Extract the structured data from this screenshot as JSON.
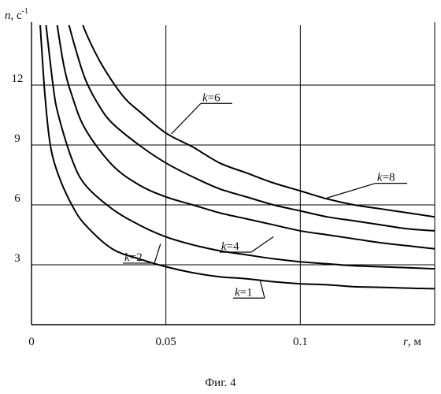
{
  "chart_data": {
    "type": "line",
    "caption": "Фиг. 4",
    "xaxis": {
      "var": "r",
      "unit": "м",
      "range": [
        0,
        0.15
      ],
      "ticks": [
        0,
        0.05,
        0.1
      ],
      "tick_labels": [
        "0",
        "0.05",
        "0.1"
      ]
    },
    "yaxis": {
      "var": "n",
      "unit": "с",
      "unit_exp": "-1",
      "range": [
        0,
        15
      ],
      "ticks": [
        3,
        6,
        9,
        12
      ],
      "tick_labels": [
        "3",
        "6",
        "9",
        "12"
      ]
    },
    "grid": true,
    "series": [
      {
        "name": "k=1",
        "var": "k",
        "eq": "=",
        "value": "1",
        "x": [
          0.003,
          0.005,
          0.007,
          0.01,
          0.015,
          0.02,
          0.03,
          0.04,
          0.05,
          0.06,
          0.07,
          0.08,
          0.09,
          0.1,
          0.11,
          0.12,
          0.13,
          0.14,
          0.15
        ],
        "y": [
          15.5,
          11.5,
          9.0,
          7.5,
          6.0,
          5.0,
          3.8,
          3.3,
          2.9,
          2.6,
          2.4,
          2.3,
          2.15,
          2.05,
          2.0,
          1.9,
          1.87,
          1.83,
          1.8
        ]
      },
      {
        "name": "k=2",
        "var": "k",
        "eq": "=",
        "value": "2",
        "x": [
          0.005,
          0.008,
          0.01,
          0.015,
          0.02,
          0.03,
          0.04,
          0.05,
          0.06,
          0.07,
          0.08,
          0.09,
          0.1,
          0.11,
          0.12,
          0.13,
          0.14,
          0.15
        ],
        "y": [
          15.5,
          12.0,
          10.5,
          8.3,
          7.0,
          5.8,
          5.0,
          4.4,
          4.0,
          3.7,
          3.5,
          3.3,
          3.15,
          3.05,
          2.95,
          2.9,
          2.85,
          2.8
        ]
      },
      {
        "name": "k=4",
        "var": "k",
        "eq": "=",
        "value": "4",
        "x": [
          0.009,
          0.012,
          0.015,
          0.02,
          0.03,
          0.04,
          0.05,
          0.06,
          0.07,
          0.08,
          0.09,
          0.1,
          0.11,
          0.12,
          0.13,
          0.14,
          0.15
        ],
        "y": [
          15.5,
          13.0,
          11.5,
          9.8,
          8.0,
          7.0,
          6.4,
          6.0,
          5.6,
          5.3,
          5.0,
          4.7,
          4.5,
          4.3,
          4.1,
          3.95,
          3.8
        ]
      },
      {
        "name": "k=6",
        "var": "k",
        "eq": "=",
        "value": "6",
        "x": [
          0.013,
          0.016,
          0.02,
          0.025,
          0.03,
          0.04,
          0.05,
          0.06,
          0.07,
          0.08,
          0.09,
          0.1,
          0.11,
          0.12,
          0.13,
          0.14,
          0.15
        ],
        "y": [
          15.5,
          14.0,
          12.3,
          11.0,
          10.1,
          9.0,
          8.1,
          7.4,
          6.8,
          6.4,
          6.0,
          5.7,
          5.4,
          5.2,
          5.0,
          4.8,
          4.7
        ]
      },
      {
        "name": "k=8",
        "var": "k",
        "eq": "=",
        "value": "8",
        "x": [
          0.018,
          0.02,
          0.025,
          0.03,
          0.035,
          0.04,
          0.05,
          0.06,
          0.07,
          0.08,
          0.09,
          0.1,
          0.11,
          0.12,
          0.13,
          0.14,
          0.15
        ],
        "y": [
          15.5,
          14.7,
          13.3,
          12.2,
          11.3,
          10.7,
          9.6,
          8.9,
          8.1,
          7.6,
          7.1,
          6.7,
          6.3,
          6.0,
          5.8,
          5.6,
          5.4
        ]
      }
    ],
    "annotations": [
      {
        "series": "k=6",
        "point": [
          0.052,
          9.55
        ],
        "label_at": [
          0.063,
          11.2
        ]
      },
      {
        "series": "k=8",
        "point": [
          0.11,
          6.35
        ],
        "label_at": [
          0.128,
          7.2
        ]
      },
      {
        "series": "k=4",
        "point": [
          0.09,
          4.4
        ],
        "label_at": [
          0.07,
          3.75
        ]
      },
      {
        "series": "k=2",
        "point": [
          0.048,
          4.05
        ],
        "label_at": [
          0.034,
          3.2
        ]
      },
      {
        "series": "k=1",
        "point": [
          0.085,
          2.25
        ],
        "label_at": [
          0.075,
          1.45
        ]
      }
    ]
  }
}
